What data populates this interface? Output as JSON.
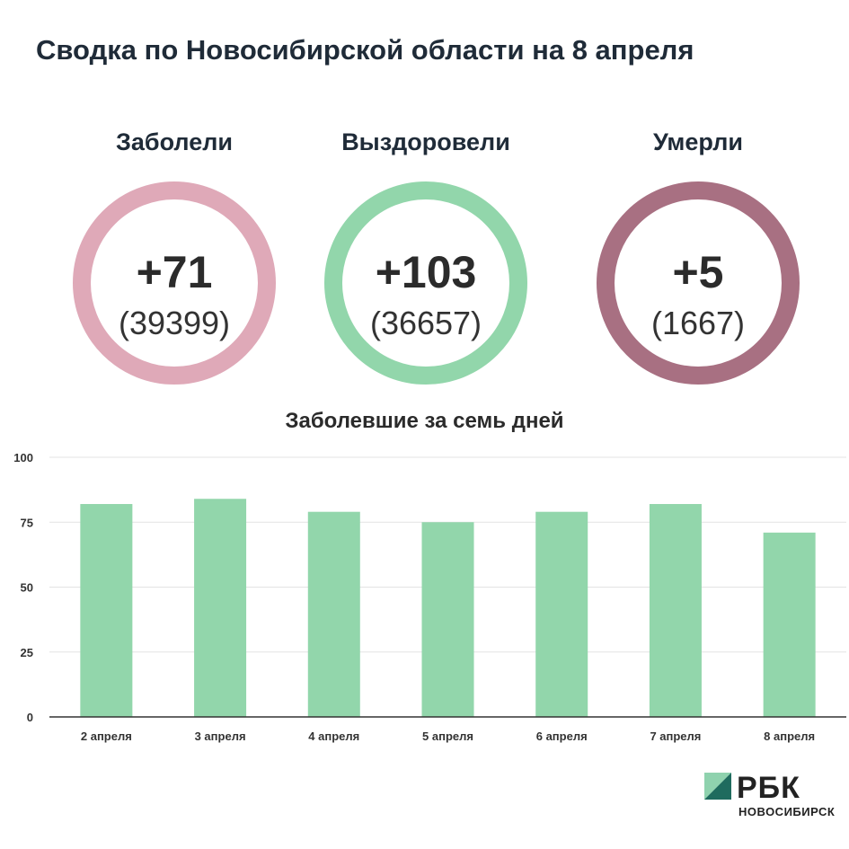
{
  "header": {
    "title": "Сводка по Новосибирской области на 8 апреля"
  },
  "stats": [
    {
      "label": "Заболели",
      "delta": "+71",
      "total": "(39399)",
      "color": "#dfa9b8"
    },
    {
      "label": "Выздоровели",
      "delta": "+103",
      "total": "(36657)",
      "color": "#92d6ab"
    },
    {
      "label": "Умерли",
      "delta": "+5",
      "total": "(1667)",
      "color": "#a87082"
    }
  ],
  "chart_data": {
    "type": "bar",
    "title": "Заболевшие за семь дней",
    "categories": [
      "2 апреля",
      "3 апреля",
      "4 апреля",
      "5 апреля",
      "6 апреля",
      "7 апреля",
      "8 апреля"
    ],
    "values": [
      82,
      84,
      79,
      75,
      79,
      82,
      71
    ],
    "ylim": [
      0,
      100
    ],
    "yticks": [
      0,
      25,
      50,
      75,
      100
    ],
    "grid": true,
    "bar_color": "#92d6ab"
  },
  "logo": {
    "name": "РБК",
    "city": "НОВОСИБИРСК",
    "accent": "#1f6b5e",
    "accent_light": "#8fd2ae"
  }
}
